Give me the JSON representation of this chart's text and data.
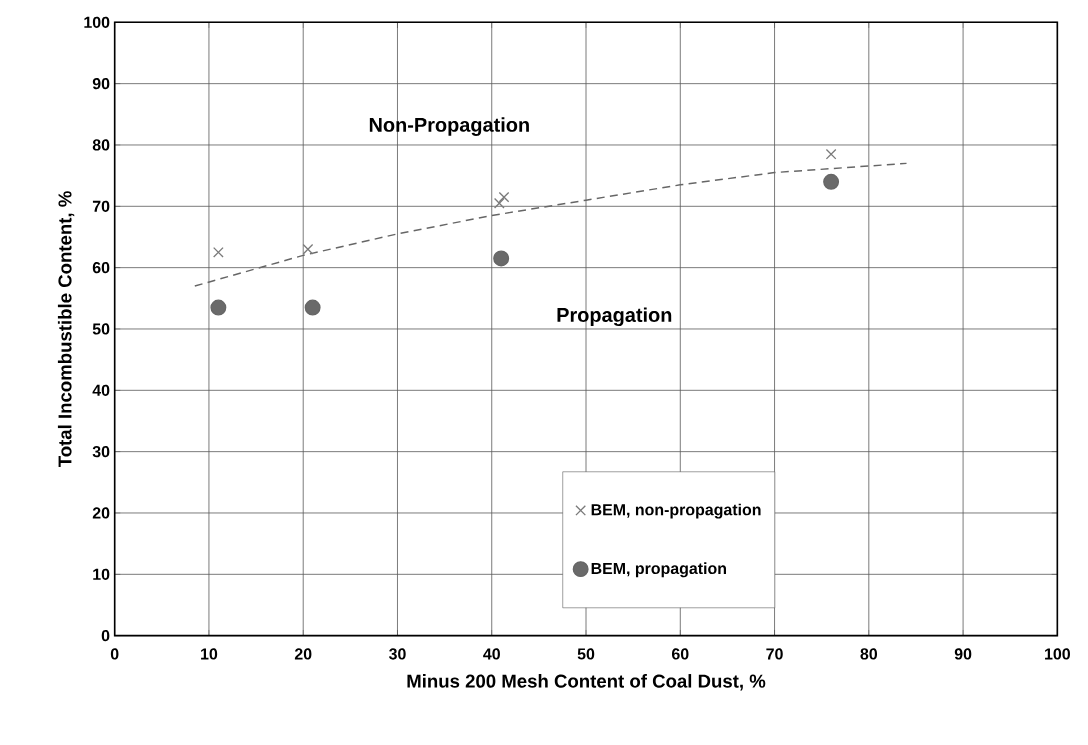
{
  "chart_data": {
    "type": "scatter",
    "xlabel": "Minus 200 Mesh Content of Coal Dust, %",
    "ylabel": "Total Incombustible Content, %",
    "xlim": [
      0,
      100
    ],
    "ylim": [
      0,
      100
    ],
    "xticks": [
      0,
      10,
      20,
      30,
      40,
      50,
      60,
      70,
      80,
      90,
      100
    ],
    "yticks": [
      0,
      10,
      20,
      30,
      40,
      50,
      60,
      70,
      80,
      90,
      100
    ],
    "grid": true,
    "legend": "bottom right",
    "annotations": [
      "Non-Propagation",
      "Propagation"
    ],
    "series": [
      {
        "name": "BEM, non-propagation",
        "marker": "cross",
        "color": "#7a7a7a",
        "x": [
          11,
          20.5,
          40.8,
          41.3,
          76
        ],
        "values": [
          62.5,
          63,
          70.5,
          71.5,
          78.5
        ]
      },
      {
        "name": "BEM, propagation",
        "marker": "circle",
        "color": "#6a6a6a",
        "x": [
          11,
          21,
          41,
          76
        ],
        "values": [
          53.5,
          53.5,
          61.5,
          74
        ]
      },
      {
        "type": "line",
        "marker": "none",
        "line_style": "dashed",
        "color": "#666666",
        "x": [
          8.5,
          20,
          30,
          40,
          50,
          60,
          70,
          84
        ],
        "values": [
          57,
          62,
          65.5,
          68.5,
          71,
          73.5,
          75.5,
          77
        ]
      }
    ]
  }
}
